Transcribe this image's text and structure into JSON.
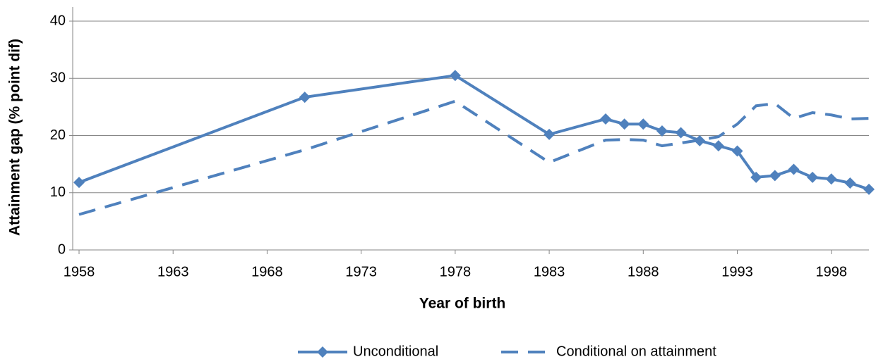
{
  "chart_data": {
    "type": "line",
    "x_label": "Year of birth",
    "y_label": "Attainment gap (% point dif)",
    "x": [
      1958,
      1970,
      1978,
      1983,
      1986,
      1987,
      1988,
      1989,
      1990,
      1991,
      1992,
      1993,
      1994,
      1995,
      1996,
      1997,
      1998,
      1999,
      2000
    ],
    "series": [
      {
        "name": "Unconditional",
        "color": "#4f81bd",
        "style": "solid",
        "marker": "diamond",
        "values": [
          11.8,
          26.7,
          30.5,
          20.2,
          22.9,
          22.0,
          22.0,
          20.8,
          20.5,
          19.1,
          18.2,
          17.3,
          12.7,
          13.0,
          14.1,
          12.7,
          12.4,
          11.7,
          10.6
        ]
      },
      {
        "name": "Conditional on attainment",
        "color": "#4f81bd",
        "style": "dashed",
        "values": [
          6.2,
          17.5,
          26.0,
          15.3,
          19.2,
          19.3,
          19.2,
          18.2,
          18.7,
          19.2,
          19.8,
          22.0,
          25.2,
          25.6,
          23.0,
          24.0,
          23.6,
          22.9,
          23.0
        ]
      }
    ],
    "xlim": [
      1958,
      2000
    ],
    "xticks": [
      1958,
      1963,
      1968,
      1973,
      1978,
      1983,
      1988,
      1993,
      1998
    ],
    "ylim": [
      0,
      40
    ],
    "yticks": [
      0,
      10,
      20,
      30,
      40
    ],
    "grid": true,
    "legend": "bottom"
  }
}
